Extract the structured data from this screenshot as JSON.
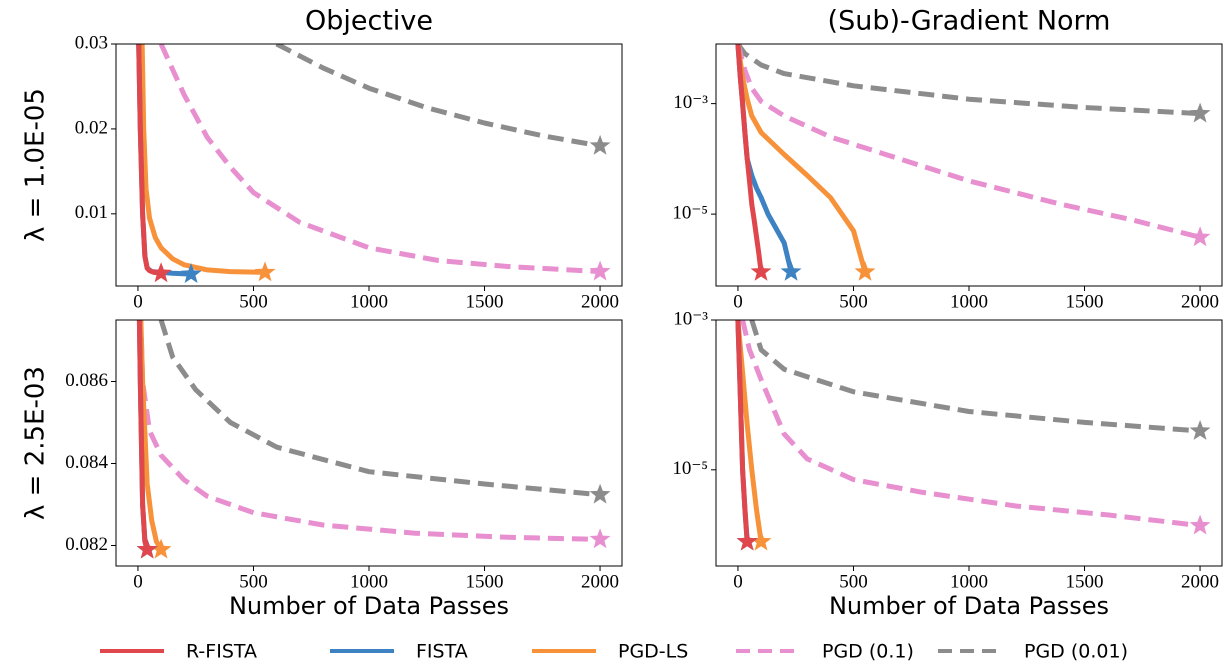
{
  "chart_data": [
    {
      "type": "line",
      "title": "Objective",
      "ylabel": "λ = 1.0E-05",
      "yscale": "linear",
      "xlim": [
        -95,
        2095
      ],
      "xticks": [
        0,
        500,
        1000,
        1500,
        2000
      ],
      "ylim": [
        0.0015,
        0.03
      ],
      "yticks": [
        0.01,
        0.02,
        0.03
      ],
      "series": [
        {
          "name": "R-FISTA",
          "color": "#e0474c",
          "linestyle": "solid",
          "x": [
            0,
            10,
            20,
            30,
            40,
            50,
            70,
            100
          ],
          "values": [
            0.035,
            0.02,
            0.01,
            0.005,
            0.0036,
            0.0033,
            0.0031,
            0.003
          ]
        },
        {
          "name": "FISTA",
          "color": "#3d82c2",
          "linestyle": "solid",
          "x": [
            0,
            10,
            20,
            30,
            40,
            60,
            100,
            150,
            230
          ],
          "values": [
            0.035,
            0.02,
            0.01,
            0.005,
            0.0036,
            0.0032,
            0.0031,
            0.003,
            0.0029
          ]
        },
        {
          "name": "PGD-LS",
          "color": "#f7923a",
          "linestyle": "solid",
          "x": [
            15,
            25,
            35,
            50,
            75,
            100,
            150,
            200,
            300,
            400,
            550
          ],
          "values": [
            0.035,
            0.02,
            0.013,
            0.0095,
            0.0072,
            0.006,
            0.0047,
            0.004,
            0.0034,
            0.0032,
            0.0031
          ]
        },
        {
          "name": "PGD (0.1)",
          "color": "#e78fcf",
          "linestyle": "dashed",
          "x": [
            100,
            150,
            200,
            300,
            400,
            500,
            700,
            1000,
            1300,
            1600,
            2000
          ],
          "values": [
            0.03,
            0.027,
            0.024,
            0.019,
            0.0155,
            0.0125,
            0.009,
            0.006,
            0.0045,
            0.0038,
            0.0032
          ]
        },
        {
          "name": "PGD (0.01)",
          "color": "#8c8c8c",
          "linestyle": "dashed",
          "x": [
            600,
            800,
            1000,
            1250,
            1500,
            1750,
            2000
          ],
          "values": [
            0.03,
            0.0272,
            0.0248,
            0.0225,
            0.0207,
            0.0192,
            0.018
          ]
        }
      ]
    },
    {
      "type": "line",
      "title": "(Sub)-Gradient Norm",
      "yscale": "log",
      "xlim": [
        -95,
        2095
      ],
      "xticks": [
        0,
        500,
        1000,
        1500,
        2000
      ],
      "ylim": [
        5e-07,
        0.012
      ],
      "yticks": [
        {
          "value": 0.001,
          "label": "10⁻³"
        },
        {
          "value": 1e-05,
          "label": "10⁻⁵"
        }
      ],
      "series": [
        {
          "color": "#e0474c",
          "linestyle": "solid",
          "x": [
            0,
            10,
            20,
            30,
            40,
            50,
            60,
            70,
            80,
            90,
            100
          ],
          "values": [
            0.012,
            0.003,
            0.001,
            0.0003,
            0.0001,
            4e-05,
            1.5e-05,
            8e-06,
            4e-06,
            2e-06,
            9e-07
          ]
        },
        {
          "color": "#3d82c2",
          "linestyle": "solid",
          "x": [
            0,
            10,
            20,
            30,
            40,
            60,
            80,
            100,
            130,
            160,
            200,
            230
          ],
          "values": [
            0.012,
            0.003,
            0.001,
            0.0003,
            0.0001,
            5e-05,
            3e-05,
            2e-05,
            1e-05,
            6e-06,
            3e-06,
            9e-07
          ]
        },
        {
          "color": "#f7923a",
          "linestyle": "solid",
          "x": [
            0,
            20,
            40,
            60,
            100,
            200,
            300,
            400,
            500,
            550
          ],
          "values": [
            0.012,
            0.003,
            0.0012,
            0.0006,
            0.0003,
            0.00012,
            5e-05,
            2e-05,
            5e-06,
            9e-07
          ]
        },
        {
          "color": "#e78fcf",
          "linestyle": "dashed",
          "x": [
            0,
            30,
            60,
            100,
            200,
            400,
            700,
            1000,
            1400,
            1700,
            2000
          ],
          "values": [
            0.012,
            0.004,
            0.0019,
            0.0011,
            0.0006,
            0.00025,
            0.0001,
            4e-05,
            1.5e-05,
            8e-06,
            3.8e-06
          ]
        },
        {
          "color": "#8c8c8c",
          "linestyle": "dashed",
          "x": [
            0,
            30,
            100,
            200,
            500,
            1000,
            1500,
            2000
          ],
          "values": [
            0.012,
            0.008,
            0.005,
            0.0035,
            0.0021,
            0.0012,
            0.00085,
            0.00066
          ]
        }
      ]
    },
    {
      "type": "line",
      "ylabel": "λ = 2.5E-03",
      "xlabel": "Number of Data Passes",
      "yscale": "linear",
      "xlim": [
        -95,
        2095
      ],
      "xticks": [
        0,
        500,
        1000,
        1500,
        2000
      ],
      "ylim": [
        0.0815,
        0.0875
      ],
      "yticks": [
        0.082,
        0.084,
        0.086
      ],
      "series": [
        {
          "color": "#e0474c",
          "linestyle": "solid",
          "x": [
            0,
            10,
            20,
            30,
            40
          ],
          "values": [
            0.09,
            0.086,
            0.083,
            0.0821,
            0.0819
          ]
        },
        {
          "color": "#3d82c2",
          "linestyle": "solid",
          "x": [
            0,
            10,
            20,
            30,
            40
          ],
          "values": [
            0.09,
            0.086,
            0.083,
            0.0821,
            0.0819
          ]
        },
        {
          "color": "#f7923a",
          "linestyle": "solid",
          "x": [
            0,
            20,
            40,
            60,
            80,
            100
          ],
          "values": [
            0.09,
            0.086,
            0.0835,
            0.0826,
            0.0821,
            0.0819
          ]
        },
        {
          "color": "#e78fcf",
          "linestyle": "dashed",
          "x": [
            0,
            20,
            50,
            100,
            200,
            300,
            500,
            800,
            1200,
            1600,
            2000
          ],
          "values": [
            0.09,
            0.086,
            0.0848,
            0.0842,
            0.0836,
            0.0832,
            0.0828,
            0.0825,
            0.0823,
            0.0822,
            0.08215
          ]
        },
        {
          "color": "#8c8c8c",
          "linestyle": "dashed",
          "x": [
            100,
            150,
            250,
            400,
            600,
            1000,
            1500,
            2000
          ],
          "values": [
            0.0875,
            0.0866,
            0.0858,
            0.085,
            0.0844,
            0.0838,
            0.0835,
            0.08324
          ]
        }
      ]
    },
    {
      "type": "line",
      "xlabel": "Number of Data Passes",
      "yscale": "log",
      "xlim": [
        -95,
        2095
      ],
      "xticks": [
        0,
        500,
        1000,
        1500,
        2000
      ],
      "ylim": [
        5.2e-07,
        0.001
      ],
      "yticks": [
        {
          "value": 0.001,
          "label": "10⁻³"
        },
        {
          "value": 1e-05,
          "label": "10⁻⁵"
        }
      ],
      "series": [
        {
          "color": "#e0474c",
          "linestyle": "solid",
          "x": [
            0,
            10,
            20,
            30,
            40
          ],
          "values": [
            0.001,
            0.0001,
            1e-05,
            3e-06,
            1.1e-06
          ]
        },
        {
          "color": "#3d82c2",
          "linestyle": "solid",
          "x": [
            0,
            10,
            20,
            30,
            40
          ],
          "values": [
            0.001,
            0.0001,
            1e-05,
            3e-06,
            1.1e-06
          ]
        },
        {
          "color": "#f7923a",
          "linestyle": "solid",
          "x": [
            0,
            20,
            40,
            60,
            80,
            100
          ],
          "values": [
            0.001,
            0.0002,
            4e-05,
            1e-05,
            3e-06,
            1.1e-06
          ]
        },
        {
          "color": "#e78fcf",
          "linestyle": "dashed",
          "x": [
            20,
            50,
            100,
            200,
            300,
            500,
            800,
            1200,
            1600,
            2000
          ],
          "values": [
            0.001,
            0.0004,
            0.00016,
            3e-05,
            1.4e-05,
            7.4e-06,
            5e-06,
            3.3e-06,
            2.5e-06,
            1.8e-06
          ]
        },
        {
          "color": "#8c8c8c",
          "linestyle": "dashed",
          "x": [
            60,
            100,
            200,
            500,
            1000,
            1500,
            2000
          ],
          "values": [
            0.001,
            0.0004,
            0.00022,
            0.00011,
            6e-05,
            4.3e-05,
            3.3e-05
          ]
        }
      ]
    }
  ]
}
